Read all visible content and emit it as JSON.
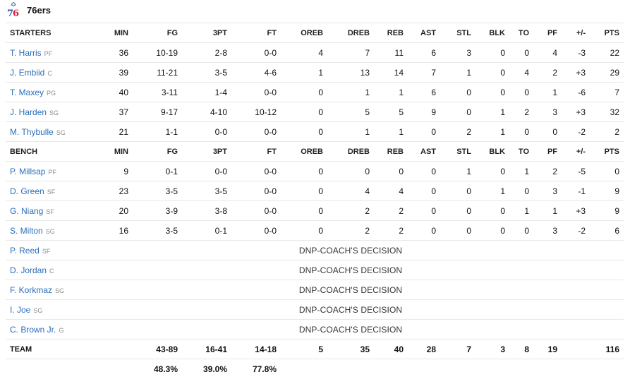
{
  "team": {
    "name": "76ers",
    "logo_text": "76",
    "logo_colors": {
      "blue": "#1d5dab",
      "red": "#e31b3b"
    }
  },
  "columns": [
    "MIN",
    "FG",
    "3PT",
    "FT",
    "OREB",
    "DREB",
    "REB",
    "AST",
    "STL",
    "BLK",
    "TO",
    "PF",
    "+/-",
    "PTS"
  ],
  "sections": {
    "starters_label": "STARTERS",
    "bench_label": "BENCH"
  },
  "starters": [
    {
      "name": "T. Harris",
      "pos": "PF",
      "stats": [
        "36",
        "10-19",
        "2-8",
        "0-0",
        "4",
        "7",
        "11",
        "6",
        "3",
        "0",
        "0",
        "4",
        "-3",
        "22"
      ]
    },
    {
      "name": "J. Embiid",
      "pos": "C",
      "stats": [
        "39",
        "11-21",
        "3-5",
        "4-6",
        "1",
        "13",
        "14",
        "7",
        "1",
        "0",
        "4",
        "2",
        "+3",
        "29"
      ]
    },
    {
      "name": "T. Maxey",
      "pos": "PG",
      "stats": [
        "40",
        "3-11",
        "1-4",
        "0-0",
        "0",
        "1",
        "1",
        "6",
        "0",
        "0",
        "0",
        "1",
        "-6",
        "7"
      ]
    },
    {
      "name": "J. Harden",
      "pos": "SG",
      "stats": [
        "37",
        "9-17",
        "4-10",
        "10-12",
        "0",
        "5",
        "5",
        "9",
        "0",
        "1",
        "2",
        "3",
        "+3",
        "32"
      ]
    },
    {
      "name": "M. Thybulle",
      "pos": "SG",
      "stats": [
        "21",
        "1-1",
        "0-0",
        "0-0",
        "0",
        "1",
        "1",
        "0",
        "2",
        "1",
        "0",
        "0",
        "-2",
        "2"
      ]
    }
  ],
  "bench": [
    {
      "name": "P. Millsap",
      "pos": "PF",
      "stats": [
        "9",
        "0-1",
        "0-0",
        "0-0",
        "0",
        "0",
        "0",
        "0",
        "1",
        "0",
        "1",
        "2",
        "-5",
        "0"
      ]
    },
    {
      "name": "D. Green",
      "pos": "SF",
      "stats": [
        "23",
        "3-5",
        "3-5",
        "0-0",
        "0",
        "4",
        "4",
        "0",
        "0",
        "1",
        "0",
        "3",
        "-1",
        "9"
      ]
    },
    {
      "name": "G. Niang",
      "pos": "SF",
      "stats": [
        "20",
        "3-9",
        "3-8",
        "0-0",
        "0",
        "2",
        "2",
        "0",
        "0",
        "0",
        "1",
        "1",
        "+3",
        "9"
      ]
    },
    {
      "name": "S. Milton",
      "pos": "SG",
      "stats": [
        "16",
        "3-5",
        "0-1",
        "0-0",
        "0",
        "2",
        "2",
        "0",
        "0",
        "0",
        "0",
        "3",
        "-2",
        "6"
      ]
    }
  ],
  "dnp": [
    {
      "name": "P. Reed",
      "pos": "SF",
      "note": "DNP-COACH'S DECISION"
    },
    {
      "name": "D. Jordan",
      "pos": "C",
      "note": "DNP-COACH'S DECISION"
    },
    {
      "name": "F. Korkmaz",
      "pos": "SG",
      "note": "DNP-COACH'S DECISION"
    },
    {
      "name": "I. Joe",
      "pos": "SG",
      "note": "DNP-COACH'S DECISION"
    },
    {
      "name": "C. Brown Jr.",
      "pos": "G",
      "note": "DNP-COACH'S DECISION"
    }
  ],
  "totals": {
    "label": "TEAM",
    "stats": [
      "",
      "43-89",
      "16-41",
      "14-18",
      "5",
      "35",
      "40",
      "28",
      "7",
      "3",
      "8",
      "19",
      "",
      "116"
    ],
    "percentages": [
      "",
      "48.3%",
      "39.0%",
      "77.8%",
      "",
      "",
      "",
      "",
      "",
      "",
      "",
      "",
      "",
      ""
    ]
  }
}
